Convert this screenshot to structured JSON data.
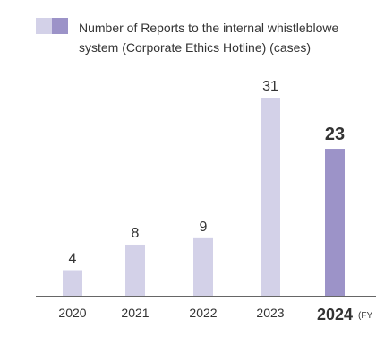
{
  "legend": {
    "line1": "Number of Reports to the internal whistleblowe",
    "line2": "system (Corporate Ethics Hotline) (cases)"
  },
  "fy_suffix": "(FY",
  "colors": {
    "bar": "#d3d1e8",
    "bar_highlight": "#9c93c8",
    "axis": "#666666",
    "text": "#333333"
  },
  "chart_data": {
    "type": "bar",
    "categories": [
      "2020",
      "2021",
      "2022",
      "2023",
      "2024"
    ],
    "values": [
      4,
      8,
      9,
      31,
      23
    ],
    "highlight_index": 4,
    "xlabel": "",
    "ylabel": "",
    "ylim": [
      0,
      31
    ],
    "grid": false,
    "legend": "top-left"
  }
}
